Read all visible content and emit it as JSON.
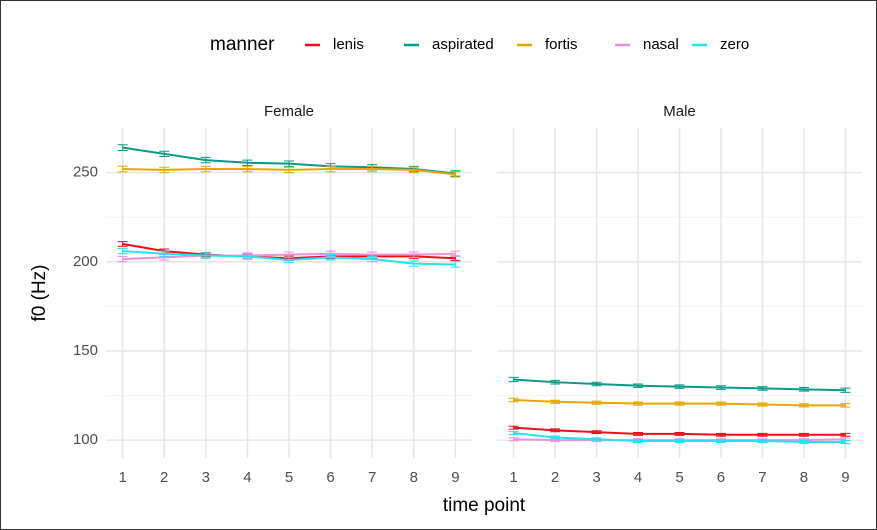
{
  "legend_title": "manner",
  "xlabel": "time point",
  "ylabel": "f0 (Hz)",
  "chart_data": [
    {
      "type": "line",
      "title": "Female",
      "x": [
        1,
        2,
        3,
        4,
        5,
        6,
        7,
        8,
        9
      ],
      "xlim": [
        0.6,
        9.4
      ],
      "xticks": [
        1,
        2,
        3,
        4,
        5,
        6,
        7,
        8,
        9
      ],
      "ylim": [
        90,
        275
      ],
      "yticks": [
        100,
        150,
        200,
        250
      ],
      "yminor": [
        125,
        175,
        225
      ],
      "grid": true,
      "series": [
        {
          "name": "lenis",
          "color": "#e8101c",
          "values": [
            210,
            206,
            204,
            203,
            202,
            203,
            203,
            203,
            202
          ],
          "errors": [
            1.3,
            1.2,
            1.2,
            1.2,
            1.2,
            1.2,
            1.2,
            1.2,
            1.2
          ]
        },
        {
          "name": "aspirated",
          "color": "#0a9b87",
          "values": [
            264,
            260.5,
            257,
            255.5,
            255,
            253.5,
            253,
            252,
            249.5
          ],
          "errors": [
            1.6,
            1.5,
            1.5,
            1.5,
            1.5,
            1.5,
            1.5,
            1.5,
            1.5
          ]
        },
        {
          "name": "fortis",
          "color": "#e6a800",
          "values": [
            252,
            251.5,
            252,
            252,
            251.5,
            252,
            252,
            251.5,
            249
          ],
          "errors": [
            1.6,
            1.5,
            1.5,
            1.5,
            1.5,
            1.5,
            1.5,
            1.5,
            1.5
          ]
        },
        {
          "name": "nasal",
          "color": "#f08fdc",
          "values": [
            201.5,
            202.5,
            203.5,
            203.5,
            204,
            204.5,
            204,
            204,
            204.5
          ],
          "errors": [
            1.5,
            1.5,
            1.5,
            1.5,
            1.5,
            1.5,
            1.5,
            1.5,
            1.5
          ]
        },
        {
          "name": "zero",
          "color": "#22e3f2",
          "values": [
            206,
            204.5,
            203.5,
            203,
            201,
            202.5,
            201.5,
            199,
            198.5
          ],
          "errors": [
            1.5,
            1.5,
            1.5,
            1.5,
            1.5,
            1.5,
            1.5,
            1.5,
            1.5
          ]
        }
      ]
    },
    {
      "type": "line",
      "title": "Male",
      "x": [
        1,
        2,
        3,
        4,
        5,
        6,
        7,
        8,
        9
      ],
      "xlim": [
        0.6,
        9.4
      ],
      "xticks": [
        1,
        2,
        3,
        4,
        5,
        6,
        7,
        8,
        9
      ],
      "ylim": [
        90,
        275
      ],
      "yticks": [
        100,
        150,
        200,
        250
      ],
      "yminor": [
        125,
        175,
        225
      ],
      "grid": true,
      "series": [
        {
          "color": "#e8101c",
          "values": [
            107,
            105.5,
            104.5,
            103.5,
            103.5,
            103,
            103,
            103,
            103
          ],
          "errors": [
            0.8,
            0.8,
            0.8,
            0.8,
            0.8,
            0.8,
            0.8,
            0.8,
            0.8
          ]
        },
        {
          "color": "#0a9b87",
          "values": [
            134,
            132.5,
            131.5,
            130.5,
            130,
            129.5,
            129,
            128.5,
            128
          ],
          "errors": [
            1.2,
            1,
            1,
            1,
            1,
            1,
            1,
            1,
            1.2
          ]
        },
        {
          "color": "#e6a800",
          "values": [
            122.5,
            121.5,
            121,
            120.5,
            120.5,
            120.5,
            120,
            119.5,
            119.5
          ],
          "errors": [
            1,
            0.9,
            0.9,
            0.9,
            0.9,
            0.9,
            0.9,
            0.9,
            1
          ]
        },
        {
          "color": "#f08fdc",
          "values": [
            100.5,
            100,
            100,
            100,
            100,
            100,
            100,
            100,
            100.5
          ],
          "errors": [
            0.8,
            0.8,
            0.8,
            0.8,
            0.8,
            0.8,
            0.8,
            0.8,
            0.8
          ]
        },
        {
          "color": "#22e3f2",
          "values": [
            104,
            101.5,
            100.5,
            99.5,
            99.5,
            99.5,
            99.5,
            99,
            99
          ],
          "errors": [
            0.9,
            0.8,
            0.8,
            0.8,
            0.8,
            0.8,
            0.8,
            0.8,
            0.9
          ]
        }
      ]
    }
  ]
}
